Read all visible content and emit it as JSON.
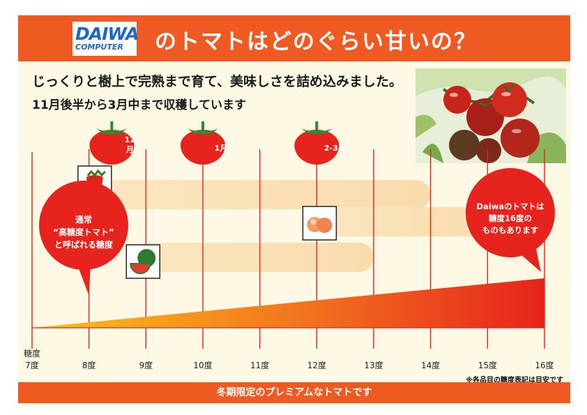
{
  "header": {
    "logo_main": "DAIWA",
    "logo_sub": "COMPUTER",
    "title": "のトマトはどのぐらい甘いの？"
  },
  "intro": {
    "line1": "じっくりと樹上で完熟まで育て、美味しさを詰め込みました。",
    "line2": "11月後半から3月中まで収穫しています"
  },
  "chart_data": {
    "type": "area",
    "x_unit": "糖度",
    "first_tick_label": "糖度",
    "ticks": [
      "7度",
      "8度",
      "9度",
      "10度",
      "11度",
      "12度",
      "13度",
      "14度",
      "15度",
      "16度"
    ],
    "xlim": [
      7,
      16
    ],
    "sugar_ramp": [
      {
        "x": 7,
        "y": 0
      },
      {
        "x": 16,
        "y": 1
      }
    ],
    "season_markers": [
      {
        "label": "12月",
        "sugar": 8.4
      },
      {
        "label": "1月",
        "sugar": 10
      },
      {
        "label": "2-3月",
        "sugar": 12
      }
    ],
    "comparisons": [
      {
        "fruit": "strawberry-icon",
        "sugar_max": 14
      },
      {
        "fruit": "peach-icon",
        "sugar_max": 15
      },
      {
        "fruit": "watermelon-icon",
        "sugar_max": 13
      }
    ]
  },
  "callouts": {
    "normal_line1": "通常",
    "normal_line2": "“高糖度トマト”",
    "normal_line3": "と呼ばれる糖度",
    "daiwa_line1": "Daiwaのトマトは",
    "daiwa_line2": "糖度16度の",
    "daiwa_line3": "ものもあります"
  },
  "note": "※各品目の糖度表記は目安です",
  "footer": "冬期限定のプレミアムなトマトです",
  "colors": {
    "accent": "#ef5a22",
    "red": "#e6231c",
    "background": "#fef8e5",
    "band": "#fbe6c1",
    "blue_logo": "#1e67c2"
  }
}
